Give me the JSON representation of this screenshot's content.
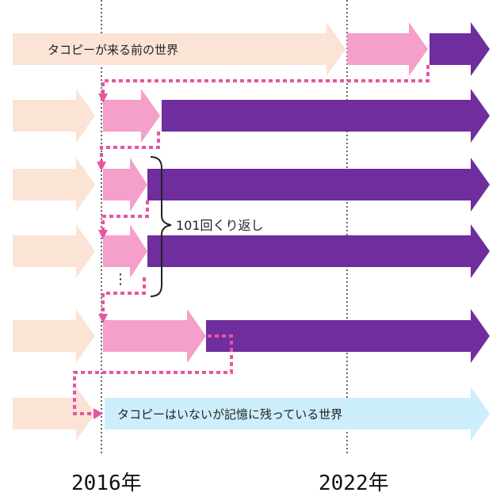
{
  "colors": {
    "before": "#fbe3d6",
    "takopi": "#f59fcb",
    "after": "#6f2d9e",
    "forgotten": "#cdeefb",
    "dotted_path": "#e8559e",
    "guide_line": "#333333",
    "text": "#222222"
  },
  "labels": {
    "top_row": "タコピーが来る前の世界",
    "bottom_row": "タコピーはいないが記憶に残っている世界",
    "repeat": "101回くり返し",
    "ellipsis": "⋮"
  },
  "years": [
    "2016年",
    "2022年"
  ]
}
